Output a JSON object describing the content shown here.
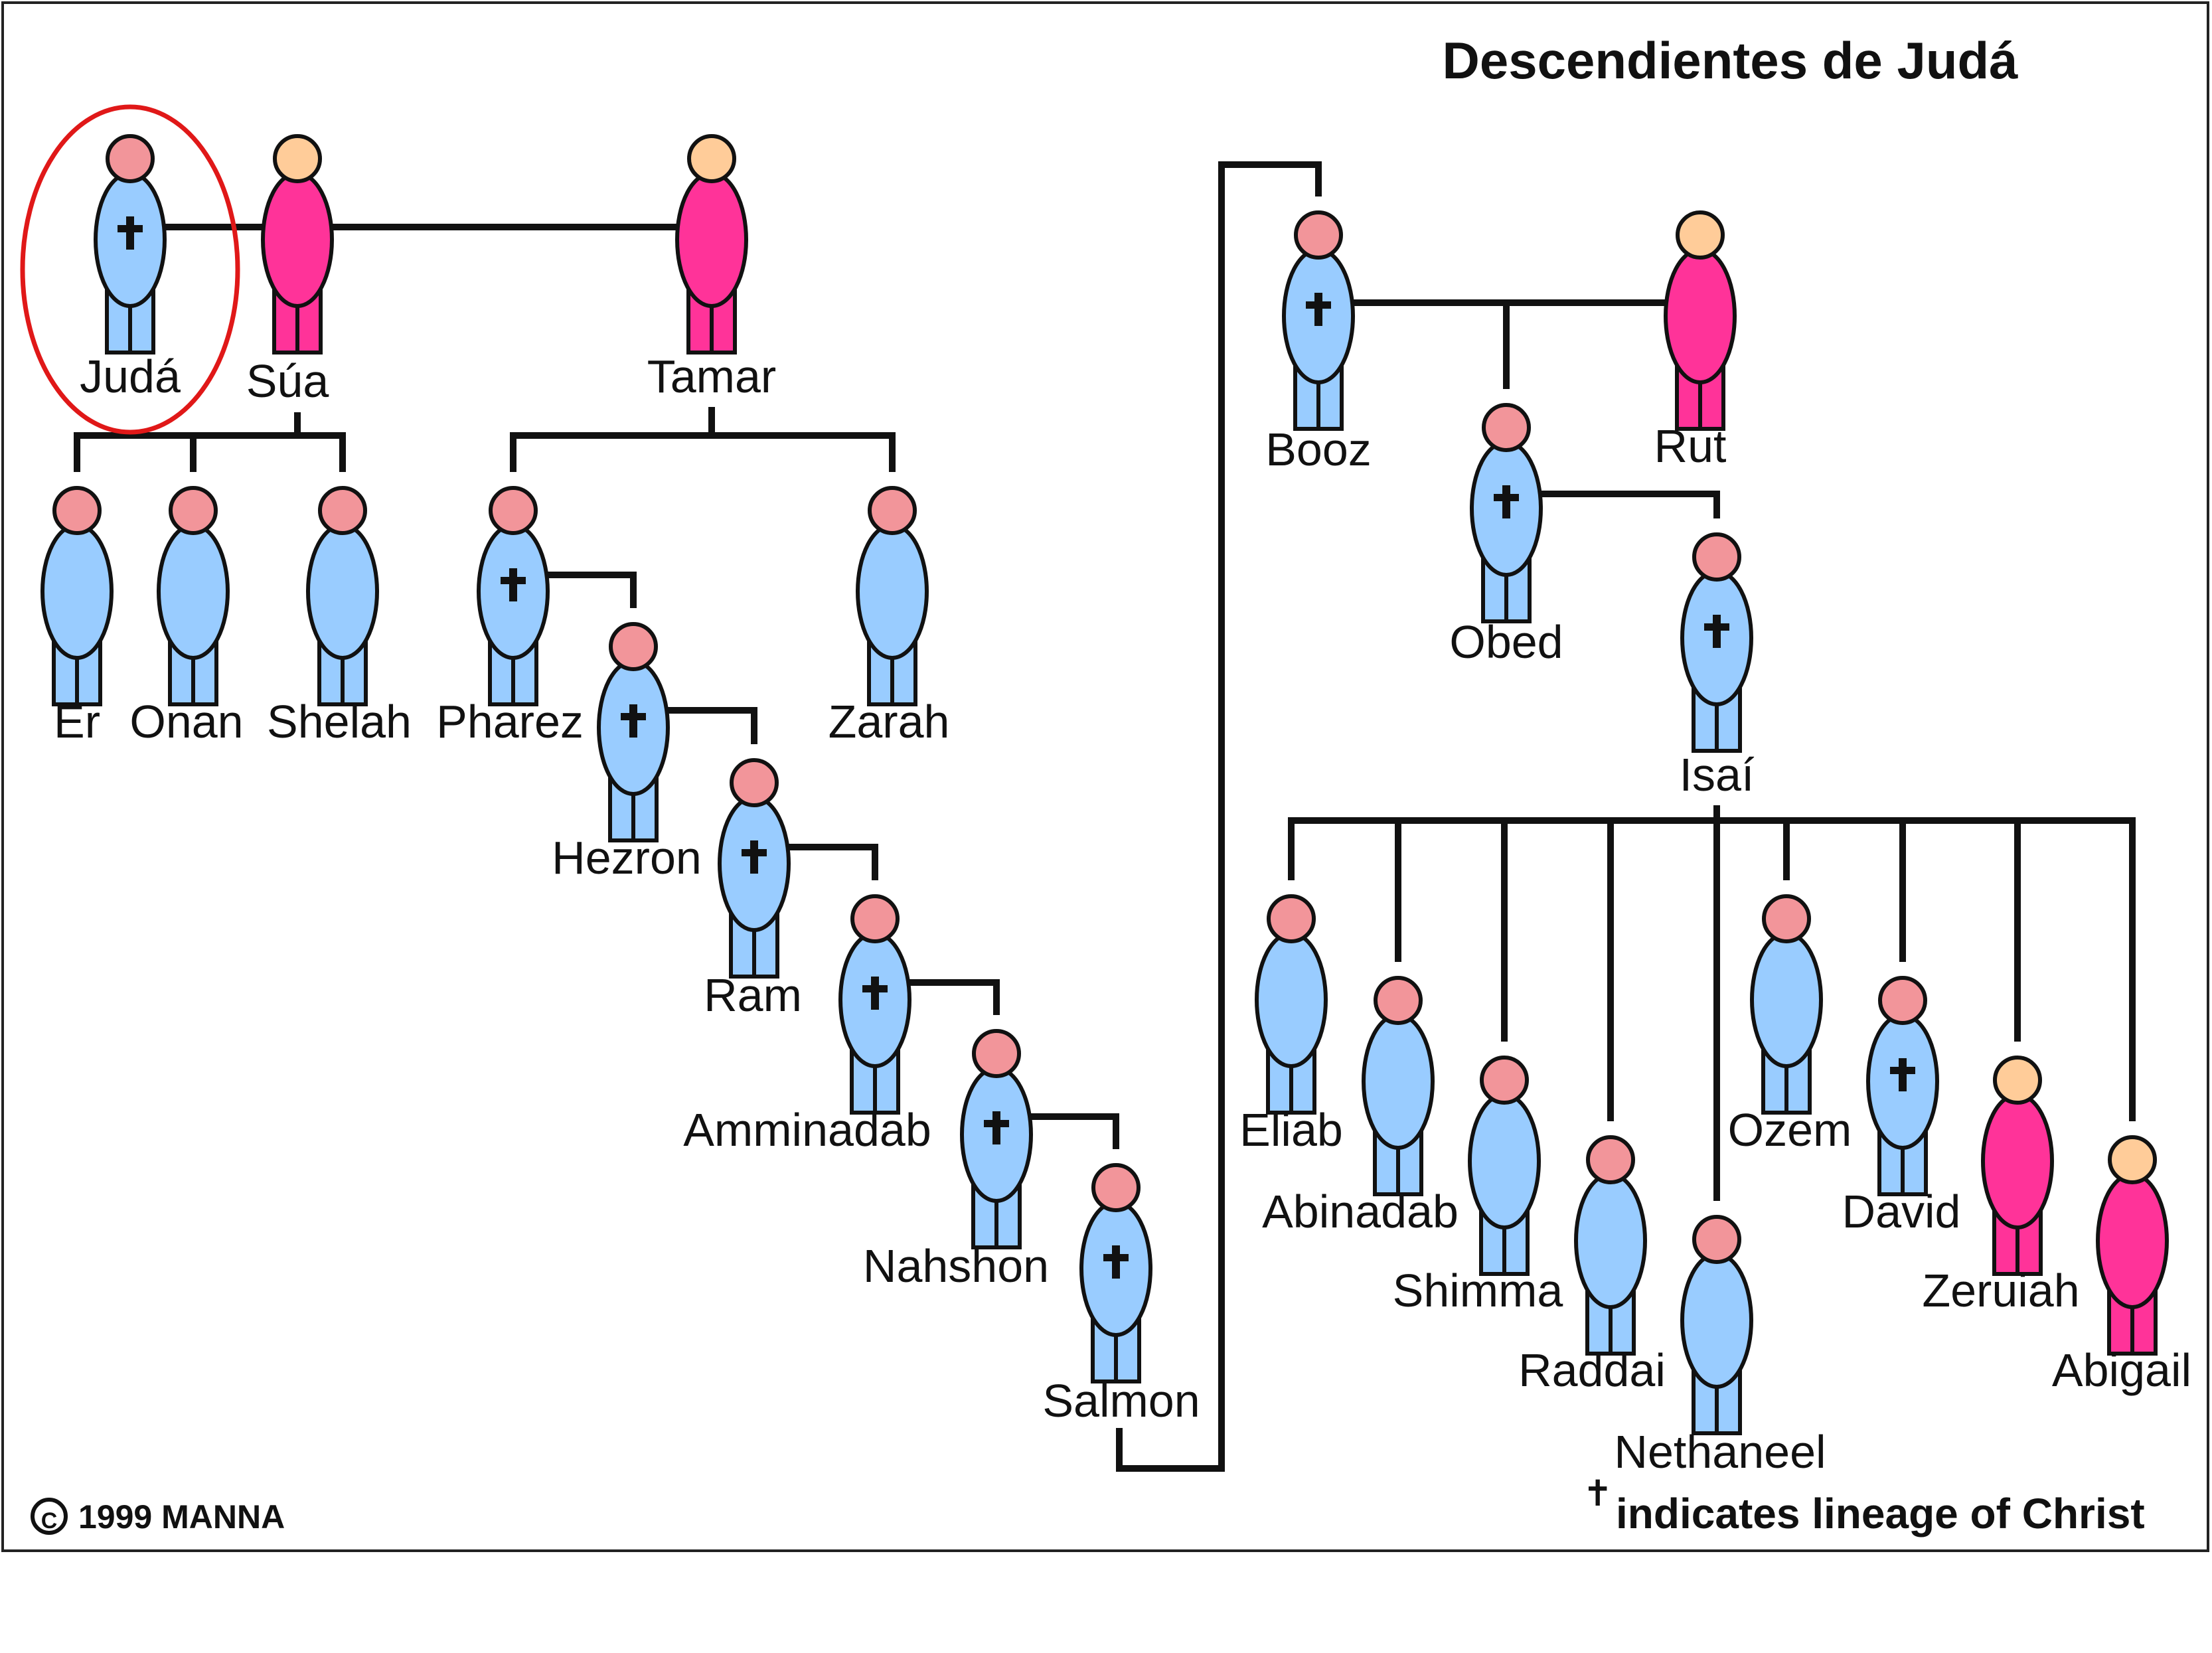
{
  "title": "Descendientes de Judá",
  "copyright": "1999 MANNA",
  "copyright_symbol": "C",
  "legend": {
    "symbol": "✝",
    "text": "indicates lineage of Christ"
  },
  "colors": {
    "male_body": "#99ccff",
    "male_head": "#f2959a",
    "female_body": "#ff3399",
    "female_head": "#ffcc99",
    "line": "#111111",
    "highlight": "#e01818"
  },
  "people": {
    "juda": {
      "name": "Judá",
      "gender": "male",
      "lineage": true,
      "highlighted": true
    },
    "sua": {
      "name": "Súa",
      "gender": "female",
      "lineage": false
    },
    "tamar": {
      "name": "Tamar",
      "gender": "female",
      "lineage": false
    },
    "er": {
      "name": "Er",
      "gender": "male",
      "lineage": false
    },
    "onan": {
      "name": "Onan",
      "gender": "male",
      "lineage": false
    },
    "shelah": {
      "name": "Shelah",
      "gender": "male",
      "lineage": false
    },
    "pharez": {
      "name": "Pharez",
      "gender": "male",
      "lineage": true
    },
    "zarah": {
      "name": "Zarah",
      "gender": "male",
      "lineage": false
    },
    "hezron": {
      "name": "Hezron",
      "gender": "male",
      "lineage": true
    },
    "ram": {
      "name": "Ram",
      "gender": "male",
      "lineage": true
    },
    "amminadab": {
      "name": "Amminadab",
      "gender": "male",
      "lineage": true
    },
    "nahshon": {
      "name": "Nahshon",
      "gender": "male",
      "lineage": true
    },
    "salmon": {
      "name": "Salmon",
      "gender": "male",
      "lineage": true
    },
    "booz": {
      "name": "Booz",
      "gender": "male",
      "lineage": true
    },
    "rut": {
      "name": "Rut",
      "gender": "female",
      "lineage": false
    },
    "obed": {
      "name": "Obed",
      "gender": "male",
      "lineage": true
    },
    "isai": {
      "name": "Isaí",
      "gender": "male",
      "lineage": true
    },
    "eliab": {
      "name": "Eliab",
      "gender": "male",
      "lineage": false
    },
    "abinadab": {
      "name": "Abinadab",
      "gender": "male",
      "lineage": false
    },
    "shimma": {
      "name": "Shimma",
      "gender": "male",
      "lineage": false
    },
    "raddai": {
      "name": "Raddai",
      "gender": "male",
      "lineage": false
    },
    "nethaneel": {
      "name": "Nethaneel",
      "gender": "male",
      "lineage": false
    },
    "ozem": {
      "name": "Ozem",
      "gender": "male",
      "lineage": false
    },
    "david": {
      "name": "David",
      "gender": "male",
      "lineage": true
    },
    "zeruiah": {
      "name": "Zeruiah",
      "gender": "female",
      "lineage": false
    },
    "abigail": {
      "name": "Abigail",
      "gender": "female",
      "lineage": false
    }
  }
}
